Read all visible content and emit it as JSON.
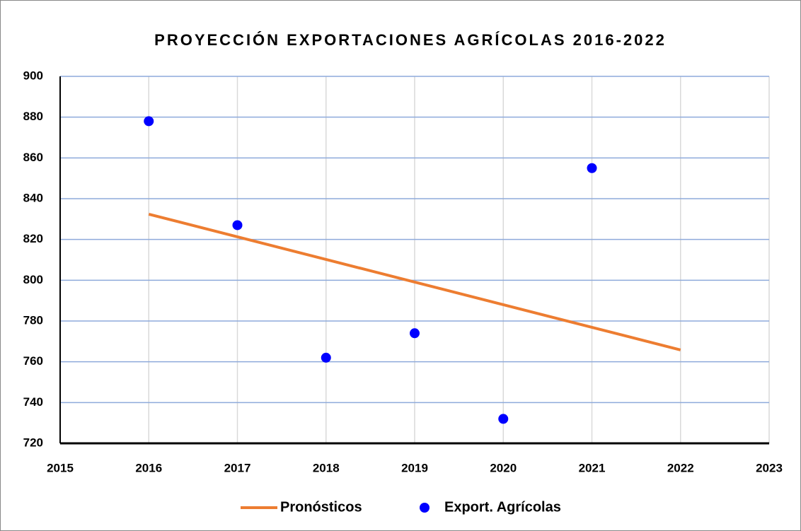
{
  "chart_data": {
    "type": "scatter",
    "title": "PROYECCIÓN EXPORTACIONES AGRÍCOLAS 2016-2022",
    "xlim": [
      2015,
      2023
    ],
    "xticks": [
      2015,
      2016,
      2017,
      2018,
      2019,
      2020,
      2021,
      2022,
      2023
    ],
    "ylim": [
      720,
      900
    ],
    "yticks": [
      720,
      740,
      760,
      780,
      800,
      820,
      840,
      860,
      880,
      900
    ],
    "grid": true,
    "legend": "bottom",
    "series": [
      {
        "name": "Pronósticos",
        "type": "line",
        "color": "#ed7d31",
        "x": [
          2016,
          2017,
          2018,
          2019,
          2020,
          2021,
          2022
        ],
        "values": [
          832.4,
          821.3,
          810.2,
          799.1,
          788.0,
          776.9,
          765.8
        ]
      },
      {
        "name": "Export. Agrícolas",
        "type": "scatter",
        "color": "#0000ff",
        "x": [
          2016,
          2017,
          2018,
          2019,
          2020,
          2021
        ],
        "values": [
          878,
          827,
          762,
          774,
          732,
          855
        ]
      }
    ]
  }
}
